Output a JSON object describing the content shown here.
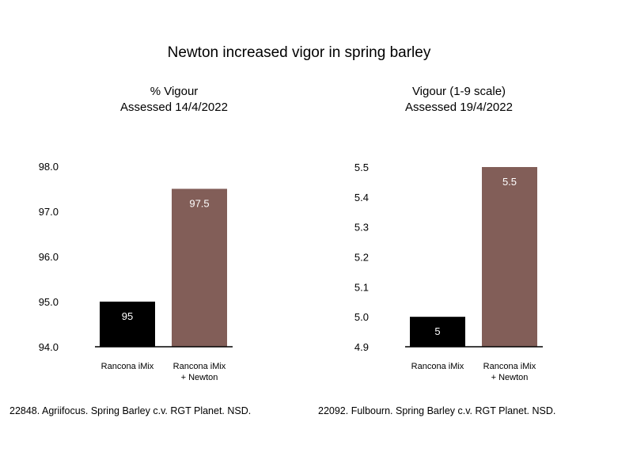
{
  "title": "Newton increased vigor in spring barley",
  "chart_data": [
    {
      "type": "bar",
      "title_line1": "% Vigour",
      "title_line2": "Assessed 14/4/2022",
      "categories": [
        [
          "Rancona iMix"
        ],
        [
          "Rancona iMix",
          "+ Newton"
        ]
      ],
      "values": [
        95,
        97.5
      ],
      "value_labels": [
        "95",
        "97.5"
      ],
      "colors": [
        "#000000",
        "#825e58"
      ],
      "ylim": [
        94.0,
        98.0
      ],
      "yticks": [
        "94.0",
        "95.0",
        "96.0",
        "97.0",
        "98.0"
      ],
      "footnote": "22848.  Agriifocus. Spring Barley c.v. RGT Planet. NSD."
    },
    {
      "type": "bar",
      "title_line1": "Vigour (1-9 scale)",
      "title_line2": "Assessed 19/4/2022",
      "categories": [
        [
          "Rancona iMix"
        ],
        [
          "Rancona iMix",
          "+ Newton"
        ]
      ],
      "values": [
        5.0,
        5.5
      ],
      "value_labels": [
        "5",
        "5.5"
      ],
      "colors": [
        "#000000",
        "#825e58"
      ],
      "ylim": [
        4.9,
        5.5
      ],
      "yticks": [
        "4.9",
        "5.0",
        "5.1",
        "5.2",
        "5.3",
        "5.4",
        "5.5"
      ],
      "footnote": "22092.  Fulbourn. Spring Barley c.v. RGT Planet. NSD."
    }
  ]
}
